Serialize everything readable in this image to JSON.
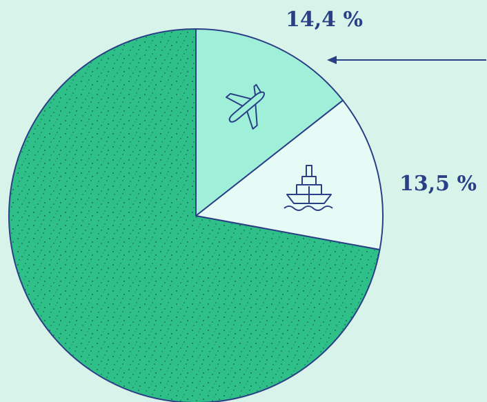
{
  "chart_data": {
    "type": "pie",
    "values": [
      14.4,
      13.5,
      72.1
    ],
    "value_labels": [
      "14,4 %",
      "13,5 %",
      null
    ],
    "colors": [
      "#9fefd9",
      "#e6fbf5",
      "#2fbf88"
    ],
    "start_angle": 0,
    "direction": "clockwise"
  }
}
